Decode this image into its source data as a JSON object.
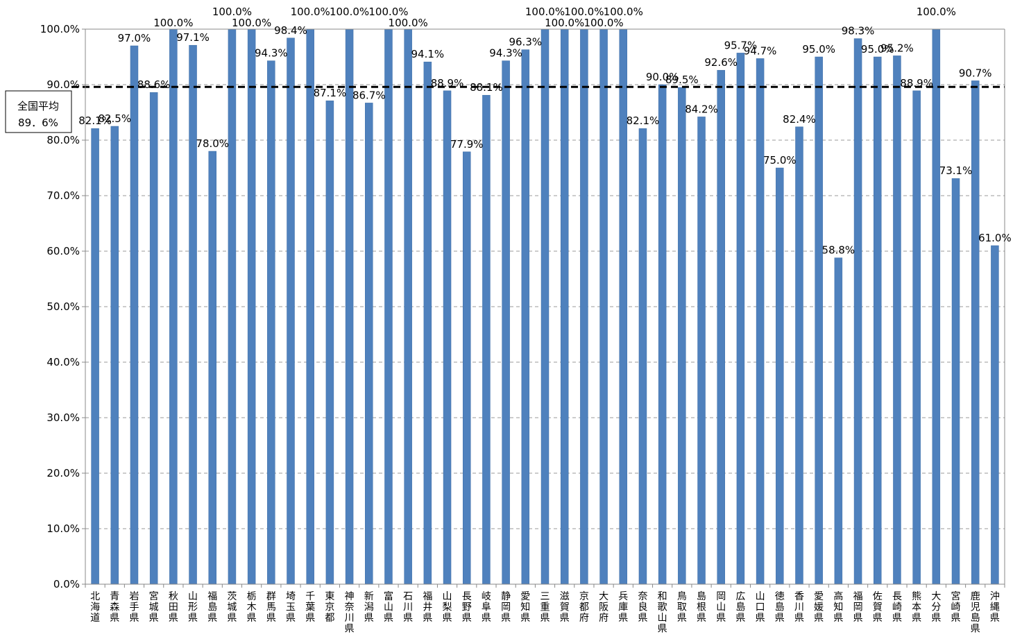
{
  "chart_data": {
    "type": "bar",
    "categories": [
      "北海道",
      "青森県",
      "岩手県",
      "宮城県",
      "秋田県",
      "山形県",
      "福島県",
      "茨城県",
      "栃木県",
      "群馬県",
      "埼玉県",
      "千葉県",
      "東京都",
      "神奈川県",
      "新潟県",
      "富山県",
      "石川県",
      "福井県",
      "山梨県",
      "長野県",
      "岐阜県",
      "静岡県",
      "愛知県",
      "三重県",
      "滋賀県",
      "京都府",
      "大阪府",
      "兵庫県",
      "奈良県",
      "和歌山県",
      "鳥取県",
      "島根県",
      "岡山県",
      "広島県",
      "山口県",
      "徳島県",
      "香川県",
      "愛媛県",
      "高知県",
      "福岡県",
      "佐賀県",
      "長崎県",
      "熊本県",
      "大分県",
      "宮崎県",
      "鹿児島県",
      "沖縄県"
    ],
    "values": [
      82.1,
      82.5,
      97.0,
      88.6,
      100.0,
      97.1,
      78.0,
      100.0,
      100.0,
      94.3,
      98.4,
      100.0,
      87.1,
      100.0,
      86.7,
      100.0,
      100.0,
      94.1,
      88.9,
      77.9,
      88.1,
      94.3,
      96.3,
      100.0,
      100.0,
      100.0,
      100.0,
      100.0,
      82.1,
      90.0,
      89.5,
      84.2,
      92.6,
      95.7,
      94.7,
      75.0,
      82.4,
      95.0,
      58.8,
      98.3,
      95.0,
      95.2,
      88.9,
      100.0,
      73.1,
      90.7,
      61.0
    ],
    "data_labels": [
      "82.1%",
      "82.5%",
      "97.0%",
      "88.6%",
      "100.0%",
      "97.1%",
      "78.0%",
      "100.0%",
      "100.0%",
      "94.3%",
      "98.4%",
      "100.0%",
      "87.1%",
      "100.0%",
      "86.7%",
      "100.0%",
      "100.0%",
      "94.1%",
      "88.9%",
      "77.9%",
      "88.1%",
      "94.3%",
      "96.3%",
      "100.0%",
      "100.0%",
      "100.0%",
      "100.0%",
      "100.0%",
      "82.1%",
      "90.0%",
      "89.5%",
      "84.2%",
      "92.6%",
      "95.7%",
      "94.7%",
      "75.0%",
      "82.4%",
      "95.0%",
      "58.8%",
      "98.3%",
      "95.0%",
      "95.2%",
      "88.9%",
      "100.0%",
      "73.1%",
      "90.7%",
      "61.0%"
    ],
    "ylim": [
      0,
      100
    ],
    "yticks": [
      0,
      10,
      20,
      30,
      40,
      50,
      60,
      70,
      80,
      90,
      100
    ],
    "ytick_labels": [
      "0.0%",
      "10.0%",
      "20.0%",
      "30.0%",
      "40.0%",
      "50.0%",
      "60.0%",
      "70.0%",
      "80.0%",
      "90.0%",
      "100.0%"
    ],
    "grid": "horizontal dashed",
    "reference_line": {
      "value": 89.6,
      "label_line1": "全国平均",
      "label_line2": "89．6%"
    },
    "title": "",
    "xlabel": "",
    "ylabel": "",
    "colors": {
      "bar": "#4f81bd",
      "bar_edge": "#3f6fa8",
      "reference": "#000000",
      "grid": "#9a9a9a",
      "axis": "#888888"
    }
  }
}
